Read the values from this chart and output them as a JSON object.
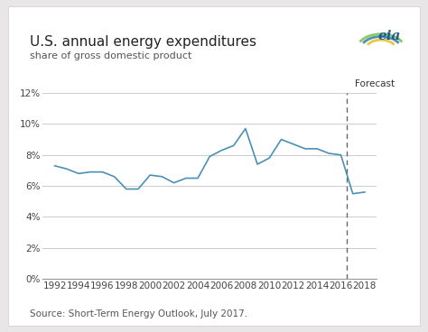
{
  "title": "U.S. annual energy expenditures",
  "subtitle": "share of gross domestic product",
  "source": "Source: Short-Term Energy Outlook, July 2017.",
  "forecast_label": "Forecast",
  "forecast_year": 2016.5,
  "line_color": "#4a90b8",
  "background_color": "#ffffff",
  "outer_bg": "#f0eeee",
  "years": [
    1992,
    1993,
    1994,
    1995,
    1996,
    1997,
    1998,
    1999,
    2000,
    2001,
    2002,
    2003,
    2004,
    2005,
    2006,
    2007,
    2008,
    2009,
    2010,
    2011,
    2012,
    2013,
    2014,
    2015,
    2016,
    2017,
    2018
  ],
  "values": [
    7.3,
    7.1,
    6.8,
    6.9,
    6.9,
    6.6,
    5.8,
    5.8,
    6.7,
    6.6,
    6.2,
    6.5,
    6.5,
    7.9,
    8.3,
    8.6,
    9.7,
    7.4,
    7.8,
    9.0,
    8.7,
    8.4,
    8.4,
    8.1,
    8.0,
    5.5,
    5.6
  ],
  "ylim": [
    0,
    12
  ],
  "yticks": [
    0,
    2,
    4,
    6,
    8,
    10,
    12
  ],
  "xlim": [
    1991,
    2019
  ],
  "xticks": [
    1992,
    1994,
    1996,
    1998,
    2000,
    2002,
    2004,
    2006,
    2008,
    2010,
    2012,
    2014,
    2016,
    2018
  ],
  "grid_color": "#cccccc",
  "title_fontsize": 11,
  "subtitle_fontsize": 8,
  "tick_fontsize": 7.5,
  "source_fontsize": 7.5
}
